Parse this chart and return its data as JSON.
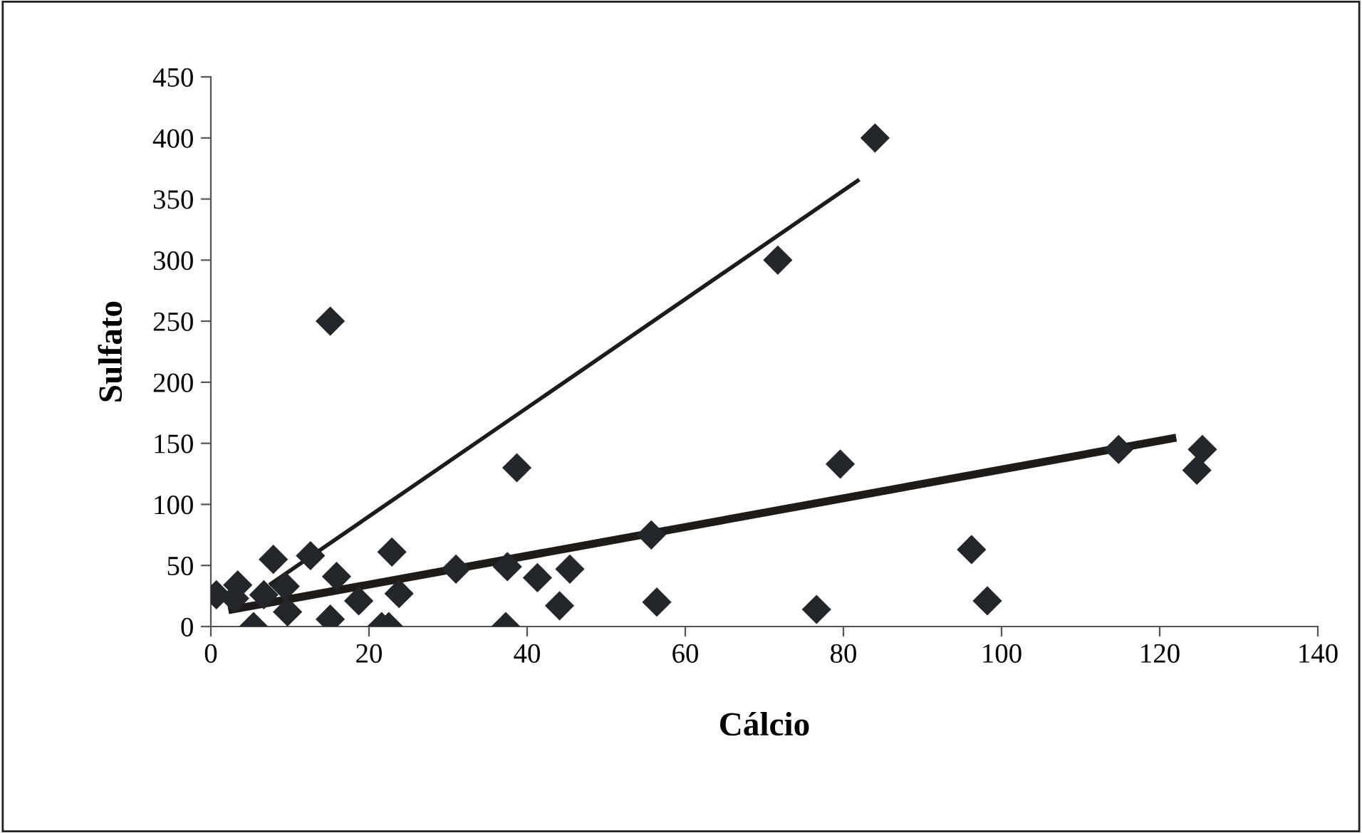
{
  "chart_data": {
    "type": "scatter",
    "xlabel": "Cálcio",
    "ylabel": "Sulfato",
    "xlim": [
      0,
      140
    ],
    "xticks": [
      0,
      20,
      40,
      60,
      80,
      100,
      120,
      140
    ],
    "ylim": [
      0,
      450
    ],
    "yticks": [
      0,
      50,
      100,
      150,
      200,
      250,
      300,
      350,
      400,
      450
    ],
    "grid": false,
    "legend": false,
    "series": [
      {
        "color": "#23262a",
        "marker": "diamond",
        "x": [
          0.7,
          3,
          3.4,
          5.4,
          6.7,
          7.9,
          9.4,
          9.7,
          12.6,
          15.1,
          15.1,
          15.9,
          18.7,
          21.6,
          22.9,
          22.5,
          23.8,
          31,
          37.5,
          37.3,
          38.7,
          41.3,
          44.1,
          45.4,
          55.7,
          56.4,
          71.7,
          76.6,
          79.6,
          84,
          96.2,
          98.2,
          114.8,
          124.7,
          125.4
        ],
        "values": [
          26,
          23,
          34,
          0,
          26,
          55,
          33,
          12,
          58,
          250,
          6,
          41,
          21,
          0,
          61,
          0,
          27,
          47,
          49,
          0,
          130,
          40,
          17,
          47,
          75,
          20,
          300,
          14,
          133,
          400,
          63,
          21,
          145,
          128,
          145
        ]
      },
      {
        "type": "line",
        "color": "#1e1b18",
        "marker": "none",
        "line_style": "solid",
        "x": [
          7.6,
          81.8
        ],
        "values": [
          35,
          365
        ]
      },
      {
        "type": "line",
        "color": "#1e1b18",
        "marker": "none",
        "line_style": "solid",
        "x": [
          2.7,
          121.6
        ],
        "values": [
          14,
          154
        ]
      }
    ]
  }
}
